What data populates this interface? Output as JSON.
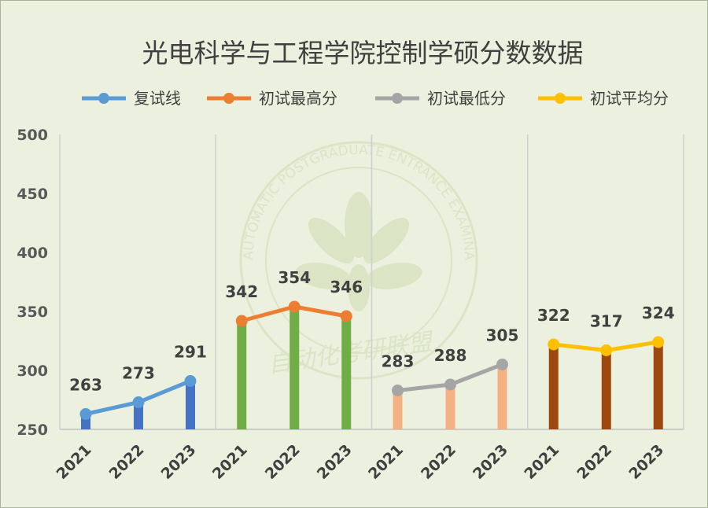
{
  "chart_data": {
    "type": "line",
    "title": "光电科学与工程学院控制学硕分数数据",
    "ylim": [
      250,
      500
    ],
    "yticks": [
      "500",
      "450",
      "400",
      "350",
      "300",
      "250"
    ],
    "categories": [
      "2021",
      "2022",
      "2023"
    ],
    "grid": "vertical separators between series groups",
    "legend_position": "top",
    "series": [
      {
        "name": "复试线",
        "values": [
          263,
          273,
          291
        ],
        "line_color": "#5b9bd5",
        "bar_color": "#4472c4"
      },
      {
        "name": "初试最高分",
        "values": [
          342,
          354,
          346
        ],
        "line_color": "#ed7d31",
        "bar_color": "#70ad47"
      },
      {
        "name": "初试最低分",
        "values": [
          283,
          288,
          305
        ],
        "line_color": "#a5a5a5",
        "bar_color": "#f4b183"
      },
      {
        "name": "初试平均分",
        "values": [
          322,
          317,
          324
        ],
        "line_color": "#ffc000",
        "bar_color": "#9e480e"
      }
    ]
  },
  "watermark": {
    "ring_text": "AUTOMATIC POSTGRADUATE ENTRANCE EXAMINATION ALLIANCE",
    "inner_text": "自动化考研联盟"
  }
}
